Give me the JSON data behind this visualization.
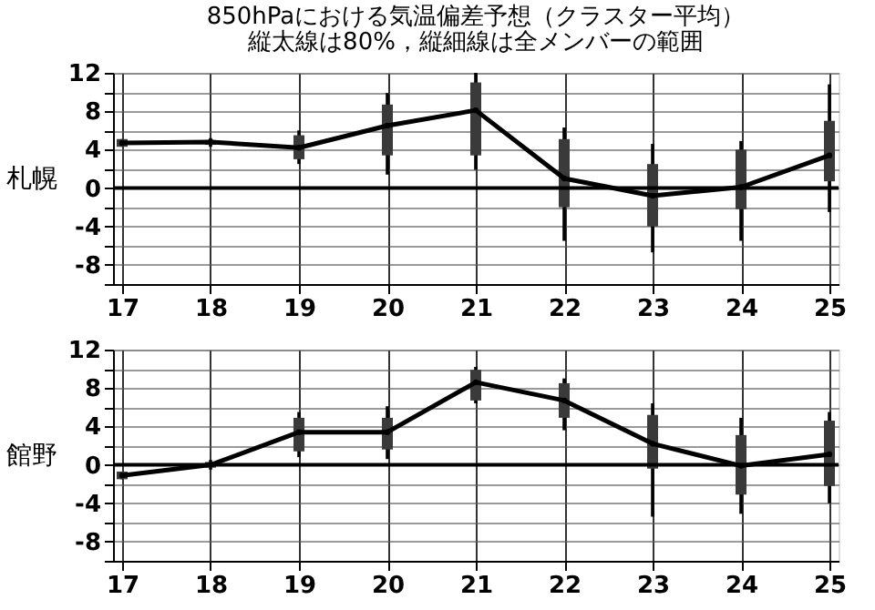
{
  "chart_data": [
    {
      "type": "box",
      "title": "850hPaにおける気温偏差予想（クラスター平均）",
      "subtitle": "縦太線は80%，縦細線は全メンバーの範囲",
      "ylabel": "札幌",
      "categories": [
        "17",
        "18",
        "19",
        "20",
        "21",
        "22",
        "23",
        "24",
        "25"
      ],
      "boxes": [
        {
          "low": 4.3,
          "q1": 4.3,
          "median": 4.7,
          "q3": 5.1,
          "high": 5.1
        },
        {
          "low": 4.3,
          "q1": 4.5,
          "median": 4.8,
          "q3": 5.0,
          "high": 5.2
        },
        {
          "low": 2.5,
          "q1": 3.0,
          "median": 4.2,
          "q3": 5.5,
          "high": 6.0
        },
        {
          "low": 1.4,
          "q1": 3.4,
          "median": 6.5,
          "q3": 8.7,
          "high": 9.9
        },
        {
          "low": 1.9,
          "q1": 3.4,
          "median": 8.1,
          "q3": 11.0,
          "high": 12.0
        },
        {
          "low": -5.5,
          "q1": -2.0,
          "median": 1.0,
          "q3": 5.1,
          "high": 6.3
        },
        {
          "low": -6.7,
          "q1": -4.0,
          "median": -0.8,
          "q3": 2.5,
          "high": 4.6
        },
        {
          "low": -5.5,
          "q1": -2.2,
          "median": 0.1,
          "q3": 4.0,
          "high": 4.9
        },
        {
          "low": -2.5,
          "q1": 0.7,
          "median": 3.4,
          "q3": 7.0,
          "high": 10.8
        }
      ],
      "series": [
        {
          "type": "line",
          "color": "#000000",
          "values": [
            4.7,
            4.8,
            4.2,
            6.5,
            8.1,
            1.0,
            -0.8,
            0.1,
            3.4
          ]
        }
      ],
      "ylim": [
        -10,
        12
      ],
      "yticks": [
        {
          "value": -10,
          "label": null
        },
        -8,
        {
          "value": -6,
          "label": null
        },
        -4,
        {
          "value": -2,
          "label": null
        },
        0,
        {
          "value": 2,
          "label": null
        },
        4,
        {
          "value": 6,
          "label": null
        },
        8,
        {
          "value": 10,
          "label": null
        },
        12
      ],
      "ref_lines": [
        {
          "axis": "y",
          "value": 0,
          "color": "#000000"
        }
      ],
      "grid": true
    },
    {
      "type": "box",
      "ylabel": "館野",
      "categories": [
        "17",
        "18",
        "19",
        "20",
        "21",
        "22",
        "23",
        "24",
        "25"
      ],
      "boxes": [
        {
          "low": -1.5,
          "q1": -1.5,
          "median": -1.1,
          "q3": -0.7,
          "high": -0.7
        },
        {
          "low": -0.5,
          "q1": -0.3,
          "median": 0.0,
          "q3": 0.3,
          "high": 0.5
        },
        {
          "low": 0.8,
          "q1": 1.4,
          "median": 3.4,
          "q3": 4.9,
          "high": 5.5
        },
        {
          "low": 0.6,
          "q1": 1.6,
          "median": 3.4,
          "q3": 4.9,
          "high": 6.1
        },
        {
          "low": 6.4,
          "q1": 6.7,
          "median": 8.6,
          "q3": 9.9,
          "high": 10.2
        },
        {
          "low": 3.6,
          "q1": 4.9,
          "median": 6.7,
          "q3": 8.5,
          "high": 9.0
        },
        {
          "low": -5.4,
          "q1": -0.4,
          "median": 2.2,
          "q3": 5.2,
          "high": 6.4
        },
        {
          "low": -5.1,
          "q1": -3.1,
          "median": -0.1,
          "q3": 3.1,
          "high": 4.9
        },
        {
          "low": -4.0,
          "q1": -2.2,
          "median": 1.1,
          "q3": 4.6,
          "high": 5.5
        }
      ],
      "series": [
        {
          "type": "line",
          "color": "#000000",
          "values": [
            -1.1,
            0.0,
            3.4,
            3.4,
            8.6,
            6.7,
            2.2,
            -0.1,
            1.1
          ]
        }
      ],
      "ylim": [
        -10,
        12
      ],
      "yticks": [
        {
          "value": -10,
          "label": null
        },
        -8,
        {
          "value": -6,
          "label": null
        },
        -4,
        {
          "value": -2,
          "label": null
        },
        0,
        {
          "value": 2,
          "label": null
        },
        4,
        {
          "value": 6,
          "label": null
        },
        8,
        {
          "value": 10,
          "label": null
        },
        12
      ],
      "ref_lines": [
        {
          "axis": "y",
          "value": 0,
          "color": "#000000"
        }
      ],
      "grid": true
    }
  ]
}
